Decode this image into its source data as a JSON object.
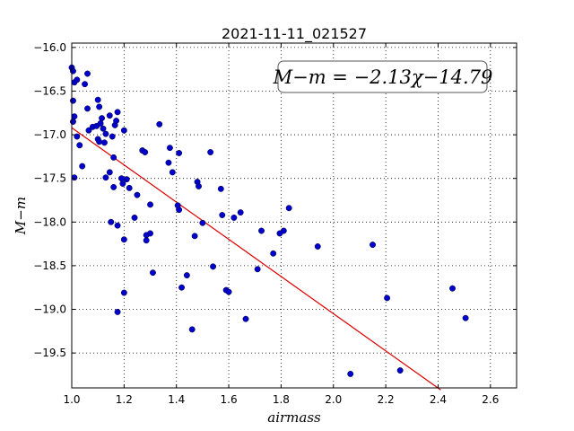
{
  "chart_data": {
    "type": "scatter",
    "title": "2021-11-11_021527",
    "xlabel": "airmass",
    "ylabel": "M−m",
    "xlim": [
      1.0,
      2.7
    ],
    "ylim": [
      -19.9,
      -15.95
    ],
    "xticks": [
      1.0,
      1.2,
      1.4,
      1.6,
      1.8,
      2.0,
      2.2,
      2.4,
      2.6
    ],
    "xtick_labels": [
      "1.0",
      "1.2",
      "1.4",
      "1.6",
      "1.8",
      "2.0",
      "2.2",
      "2.4",
      "2.6"
    ],
    "yticks": [
      -16.0,
      -16.5,
      -17.0,
      -17.5,
      -18.0,
      -18.5,
      -19.0,
      -19.5
    ],
    "ytick_labels": [
      "−16.0",
      "−16.5",
      "−17.0",
      "−17.5",
      "−18.0",
      "−18.5",
      "−19.0",
      "−19.5"
    ],
    "grid": true,
    "annotation": "M−m = −2.13χ−14.79",
    "annotation_position": "top-right",
    "series": [
      {
        "type": "scatter",
        "color": "#0000cc",
        "points": [
          [
            1.0,
            -16.23
          ],
          [
            1.005,
            -16.27
          ],
          [
            1.01,
            -16.4
          ],
          [
            1.02,
            -16.37
          ],
          [
            1.005,
            -16.61
          ],
          [
            1.01,
            -16.79
          ],
          [
            1.005,
            -16.85
          ],
          [
            1.01,
            -17.49
          ],
          [
            1.02,
            -17.02
          ],
          [
            1.03,
            -17.12
          ],
          [
            1.04,
            -17.36
          ],
          [
            1.05,
            -16.42
          ],
          [
            1.06,
            -16.3
          ],
          [
            1.06,
            -16.7
          ],
          [
            1.065,
            -16.95
          ],
          [
            1.08,
            -16.91
          ],
          [
            1.095,
            -16.9
          ],
          [
            1.1,
            -16.6
          ],
          [
            1.105,
            -16.68
          ],
          [
            1.11,
            -16.87
          ],
          [
            1.115,
            -16.81
          ],
          [
            1.12,
            -16.93
          ],
          [
            1.13,
            -16.99
          ],
          [
            1.1,
            -17.05
          ],
          [
            1.105,
            -17.08
          ],
          [
            1.125,
            -17.09
          ],
          [
            1.145,
            -16.78
          ],
          [
            1.155,
            -17.02
          ],
          [
            1.165,
            -16.89
          ],
          [
            1.17,
            -16.84
          ],
          [
            1.175,
            -16.74
          ],
          [
            1.2,
            -16.95
          ],
          [
            1.16,
            -17.26
          ],
          [
            1.13,
            -17.49
          ],
          [
            1.145,
            -17.43
          ],
          [
            1.16,
            -17.6
          ],
          [
            1.19,
            -17.5
          ],
          [
            1.195,
            -17.56
          ],
          [
            1.21,
            -17.51
          ],
          [
            1.22,
            -17.61
          ],
          [
            1.25,
            -17.69
          ],
          [
            1.27,
            -17.18
          ],
          [
            1.28,
            -17.2
          ],
          [
            1.15,
            -18.0
          ],
          [
            1.175,
            -18.04
          ],
          [
            1.2,
            -18.2
          ],
          [
            1.24,
            -17.95
          ],
          [
            1.3,
            -17.8
          ],
          [
            1.285,
            -18.15
          ],
          [
            1.3,
            -18.13
          ],
          [
            1.285,
            -18.21
          ],
          [
            1.2,
            -18.81
          ],
          [
            1.175,
            -19.03
          ],
          [
            1.31,
            -18.58
          ],
          [
            1.335,
            -16.88
          ],
          [
            1.37,
            -17.32
          ],
          [
            1.375,
            -17.15
          ],
          [
            1.385,
            -17.43
          ],
          [
            1.41,
            -17.21
          ],
          [
            1.405,
            -17.81
          ],
          [
            1.41,
            -17.86
          ],
          [
            1.48,
            -17.54
          ],
          [
            1.485,
            -17.59
          ],
          [
            1.5,
            -18.01
          ],
          [
            1.47,
            -18.16
          ],
          [
            1.42,
            -18.75
          ],
          [
            1.44,
            -18.61
          ],
          [
            1.46,
            -19.23
          ],
          [
            1.53,
            -17.2
          ],
          [
            1.57,
            -17.62
          ],
          [
            1.575,
            -17.92
          ],
          [
            1.54,
            -18.51
          ],
          [
            1.59,
            -18.78
          ],
          [
            1.6,
            -18.8
          ],
          [
            1.62,
            -17.95
          ],
          [
            1.645,
            -17.89
          ],
          [
            1.665,
            -19.11
          ],
          [
            1.71,
            -18.54
          ],
          [
            1.725,
            -18.1
          ],
          [
            1.77,
            -18.36
          ],
          [
            1.795,
            -18.13
          ],
          [
            1.81,
            -18.1
          ],
          [
            1.83,
            -17.84
          ],
          [
            1.94,
            -18.28
          ],
          [
            2.065,
            -19.74
          ],
          [
            2.15,
            -18.26
          ],
          [
            2.205,
            -18.87
          ],
          [
            2.255,
            -19.7
          ],
          [
            2.455,
            -18.76
          ],
          [
            2.505,
            -19.1
          ]
        ]
      },
      {
        "type": "line",
        "color": "#dd0000",
        "slope": -2.13,
        "intercept": -14.79,
        "x_range": [
          1.0,
          2.41
        ]
      }
    ]
  }
}
